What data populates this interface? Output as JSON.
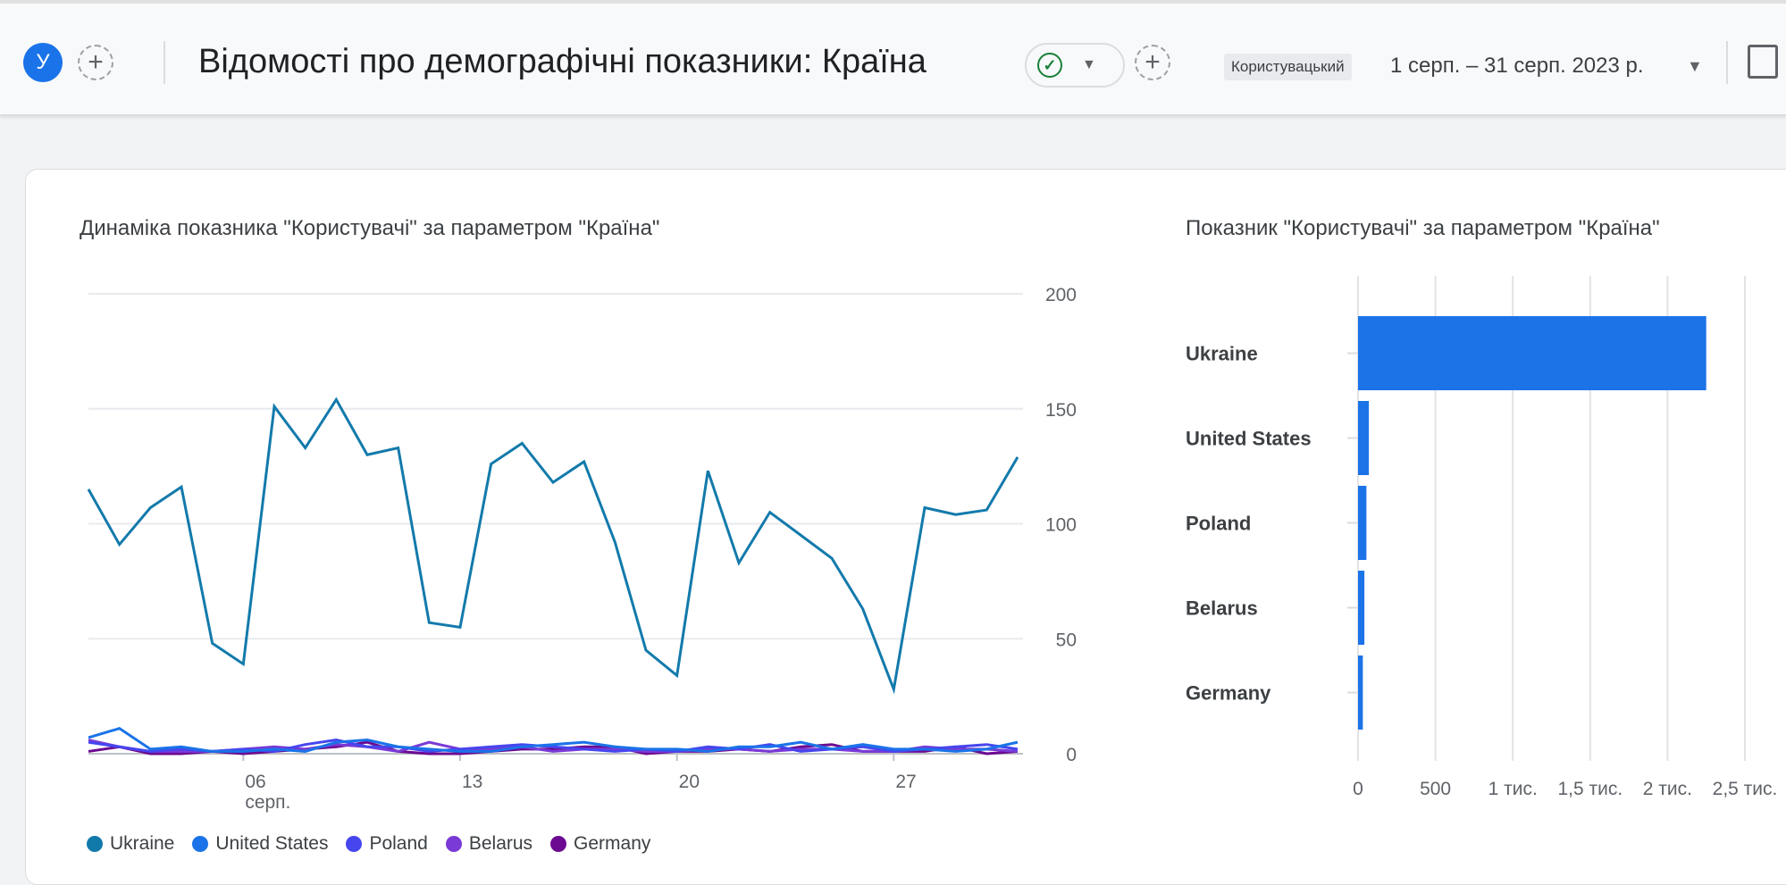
{
  "header": {
    "avatar_letter": "У",
    "title": "Відомості про демографічні показники: Країна",
    "date_range_type": "Користувацький",
    "date_range": "1 серп. – 31 серп. 2023 р.",
    "icons": [
      "plus-icon",
      "check-circle-icon",
      "caret-down-icon",
      "plus-icon",
      "caret-down-icon",
      "edit-chart-icon"
    ]
  },
  "colors": {
    "Ukraine": "#127aab",
    "United States": "#1a73e8",
    "Poland": "#4646ee",
    "Belarus": "#7a3ad6",
    "Germany": "#6c0b92",
    "bar": "#1c73e8"
  },
  "chart_data": [
    {
      "type": "line",
      "title": "Динаміка показника \"Користувачі\" за параметром \"Країна\"",
      "x": [
        1,
        2,
        3,
        4,
        5,
        6,
        7,
        8,
        9,
        10,
        11,
        12,
        13,
        14,
        15,
        16,
        17,
        18,
        19,
        20,
        21,
        22,
        23,
        24,
        25,
        26,
        27,
        28,
        29,
        30,
        31
      ],
      "x_ticks": [
        {
          "day": 6,
          "label": "06",
          "sublabel": "серп."
        },
        {
          "day": 13,
          "label": "13"
        },
        {
          "day": 20,
          "label": "20"
        },
        {
          "day": 27,
          "label": "27"
        }
      ],
      "y_ticks": [
        "0",
        "50",
        "100",
        "150",
        "200"
      ],
      "ylim": [
        0,
        200
      ],
      "grid": true,
      "y_axis_side": "right",
      "legend_placement": "bottom-left",
      "series": [
        {
          "name": "Ukraine",
          "values": [
            115,
            91,
            107,
            116,
            48,
            39,
            151,
            133,
            154,
            130,
            133,
            57,
            55,
            126,
            135,
            118,
            127,
            92,
            45,
            34,
            123,
            83,
            105,
            95,
            85,
            63,
            28,
            107,
            104,
            106,
            129
          ]
        },
        {
          "name": "United States",
          "values": [
            7,
            11,
            2,
            3,
            1,
            1,
            2,
            1,
            5,
            6,
            3,
            2,
            1,
            1,
            3,
            4,
            5,
            3,
            2,
            2,
            1,
            3,
            3,
            5,
            2,
            4,
            2,
            2,
            1,
            2,
            5
          ]
        },
        {
          "name": "Poland",
          "values": [
            5,
            3,
            1,
            2,
            1,
            2,
            1,
            4,
            6,
            3,
            3,
            1,
            2,
            3,
            4,
            3,
            2,
            1,
            2,
            1,
            3,
            2,
            4,
            1,
            2,
            3,
            1,
            2,
            3,
            4,
            2
          ]
        },
        {
          "name": "Belarus",
          "values": [
            6,
            3,
            1,
            1,
            1,
            2,
            3,
            2,
            4,
            3,
            1,
            5,
            2,
            2,
            3,
            1,
            2,
            2,
            1,
            1,
            2,
            2,
            1,
            2,
            2,
            1,
            1,
            3,
            2,
            2,
            1
          ]
        },
        {
          "name": "Germany",
          "values": [
            1,
            3,
            0,
            0,
            1,
            0,
            1,
            2,
            3,
            5,
            1,
            0,
            0,
            1,
            2,
            2,
            3,
            3,
            0,
            1,
            1,
            2,
            1,
            3,
            4,
            1,
            1,
            1,
            3,
            0,
            1
          ]
        }
      ]
    },
    {
      "type": "bar",
      "orientation": "horizontal",
      "title": "Показник \"Користувачі\" за параметром \"Країна\"",
      "categories": [
        "Ukraine",
        "United States",
        "Poland",
        "Belarus",
        "Germany"
      ],
      "values": [
        2250,
        70,
        54,
        41,
        31
      ],
      "x_ticks": [
        {
          "v": 0,
          "label": "0"
        },
        {
          "v": 500,
          "label": "500"
        },
        {
          "v": 1000,
          "label": "1 тис."
        },
        {
          "v": 1500,
          "label": "1,5 тис."
        },
        {
          "v": 2000,
          "label": "2 тис."
        },
        {
          "v": 2500,
          "label": "2,5 тис."
        }
      ],
      "xlim": [
        0,
        2500
      ],
      "grid": true
    }
  ]
}
